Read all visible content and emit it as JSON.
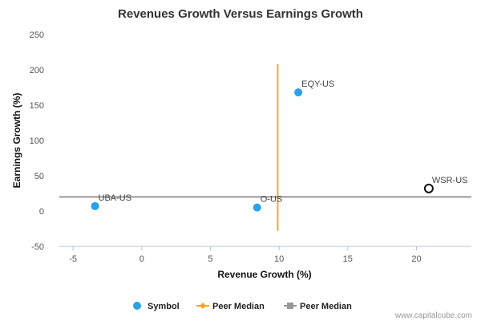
{
  "chart_data": {
    "type": "scatter",
    "title": "Revenues Growth Versus Earnings Growth",
    "xlabel": "Revenue Growth (%)",
    "ylabel": "Earnings Growth (%)",
    "xlim": [
      -6,
      24
    ],
    "ylim": [
      -50,
      250
    ],
    "xticks": [
      -5,
      0,
      5,
      10,
      15,
      20
    ],
    "yticks": [
      -50,
      0,
      50,
      100,
      150,
      200,
      250
    ],
    "grid": false,
    "points": [
      {
        "label": "UBA-US",
        "x": -3.4,
        "y": 7,
        "style": "filled"
      },
      {
        "label": "O-US",
        "x": 8.4,
        "y": 5,
        "style": "filled"
      },
      {
        "label": "EQY-US",
        "x": 11.4,
        "y": 168,
        "style": "filled"
      },
      {
        "label": "WSR-US",
        "x": 20.9,
        "y": 32,
        "style": "hollow"
      }
    ],
    "peer_median_x": 9.9,
    "peer_median_x_range": [
      -28,
      208
    ],
    "peer_median_y": 20,
    "legend": {
      "placement": "bottom",
      "items": [
        {
          "label": "Symbol",
          "marker": "circle",
          "color": "#2aa1e8"
        },
        {
          "label": "Peer Median",
          "marker": "diamond-line",
          "color": "#f5a623"
        },
        {
          "label": "Peer Median",
          "marker": "square-line",
          "color": "#999999"
        }
      ]
    },
    "colors": {
      "point": "#2aa1e8",
      "vertical_median": "#f5a623",
      "horizontal_median": "#999999"
    }
  },
  "credit": "www.capitalcube.com"
}
